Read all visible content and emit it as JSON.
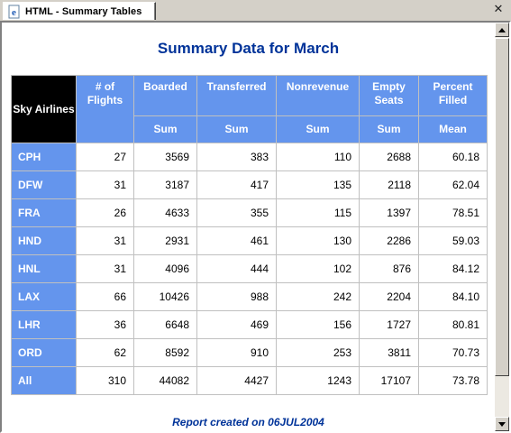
{
  "tab": {
    "title": "HTML - Summary Tables"
  },
  "report": {
    "title": "Summary Data for March",
    "footer": "Report created on 06JUL2004"
  },
  "table": {
    "corner": "Sky Airlines",
    "columns": [
      "# of Flights",
      "Boarded",
      "Transferred",
      "Nonrevenue",
      "Empty Seats",
      "Percent Filled"
    ],
    "statistics": [
      "",
      "Sum",
      "Sum",
      "Sum",
      "Sum",
      "Mean"
    ],
    "rows": [
      {
        "label": "CPH",
        "cells": [
          "27",
          "3569",
          "383",
          "110",
          "2688",
          "60.18"
        ]
      },
      {
        "label": "DFW",
        "cells": [
          "31",
          "3187",
          "417",
          "135",
          "2118",
          "62.04"
        ]
      },
      {
        "label": "FRA",
        "cells": [
          "26",
          "4633",
          "355",
          "115",
          "1397",
          "78.51"
        ]
      },
      {
        "label": "HND",
        "cells": [
          "31",
          "2931",
          "461",
          "130",
          "2286",
          "59.03"
        ]
      },
      {
        "label": "HNL",
        "cells": [
          "31",
          "4096",
          "444",
          "102",
          "876",
          "84.12"
        ]
      },
      {
        "label": "LAX",
        "cells": [
          "66",
          "10426",
          "988",
          "242",
          "2204",
          "84.10"
        ]
      },
      {
        "label": "LHR",
        "cells": [
          "36",
          "6648",
          "469",
          "156",
          "1727",
          "80.81"
        ]
      },
      {
        "label": "ORD",
        "cells": [
          "62",
          "8592",
          "910",
          "253",
          "3811",
          "70.73"
        ]
      },
      {
        "label": "All",
        "cells": [
          "310",
          "44082",
          "4427",
          "1243",
          "17107",
          "73.78"
        ]
      }
    ]
  },
  "colors": {
    "header_bg": "#6495ed",
    "corner_bg": "#000000",
    "title": "#003399"
  },
  "icons": {
    "tab": "ie-page-icon",
    "close": "close-icon"
  }
}
